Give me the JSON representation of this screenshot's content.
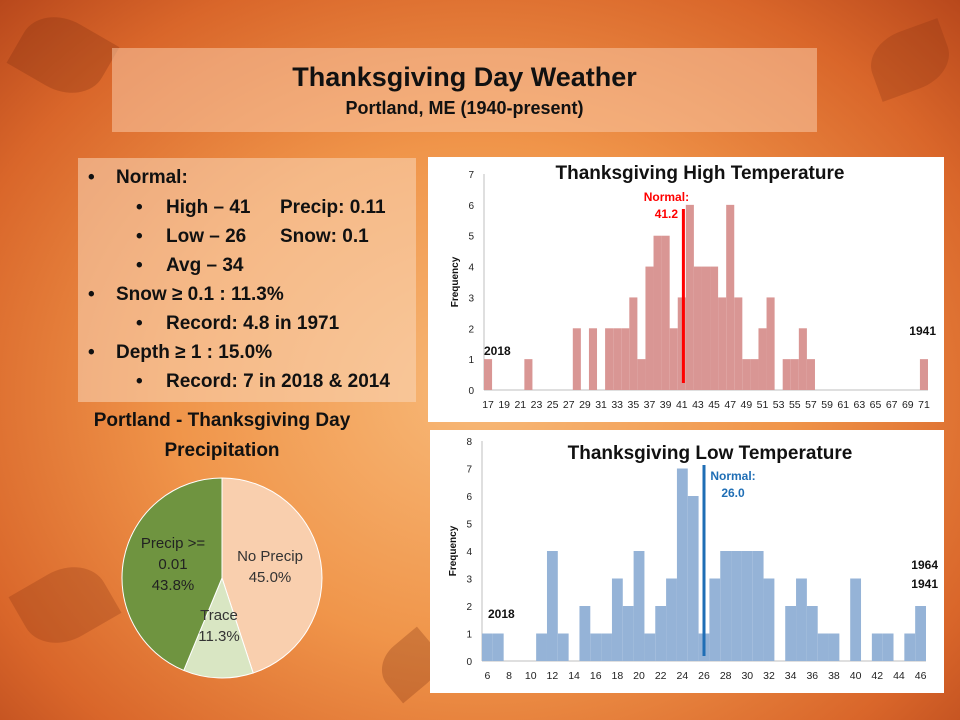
{
  "slide": {
    "title": "Thanksgiving Day Weather",
    "subtitle": "Portland, ME (1940-present)"
  },
  "normals": {
    "heading": "Normal:",
    "high": "High – 41",
    "precip": "Precip: 0.11",
    "low": "Low – 26",
    "snow": "Snow: 0.1",
    "avg": "Avg – 34",
    "snow_freq": "Snow ≥ 0.1 : 11.3%",
    "snow_record": "Record: 4.8 in 1971",
    "depth_freq": "Depth ≥ 1 : 15.0%",
    "depth_record": "Record: 7 in 2018 & 2014"
  },
  "chart_data": [
    {
      "type": "pie",
      "title": "Portland - Thanksgiving Day Precipitation",
      "labels": [
        "No Precip",
        "Trace",
        "Precip >= 0.01"
      ],
      "values": [
        45.0,
        11.3,
        43.8
      ],
      "value_labels": [
        "45.0%",
        "11.3%",
        "43.8%"
      ],
      "colors": [
        "#f9cfae",
        "#d9e6c3",
        "#6f9440"
      ]
    },
    {
      "type": "bar",
      "title": "Thanksgiving High Temperature",
      "ylabel": "Frequency",
      "ylim": [
        0,
        7
      ],
      "yticks": [
        0,
        1,
        2,
        3,
        4,
        5,
        6,
        7
      ],
      "x": [
        17,
        18,
        19,
        20,
        21,
        22,
        23,
        24,
        25,
        26,
        27,
        28,
        29,
        30,
        31,
        32,
        33,
        34,
        35,
        36,
        37,
        38,
        39,
        40,
        41,
        42,
        43,
        44,
        45,
        46,
        47,
        48,
        49,
        50,
        51,
        52,
        53,
        54,
        55,
        56,
        57,
        58,
        59,
        60,
        61,
        62,
        63,
        64,
        65,
        66,
        67,
        68,
        69,
        70,
        71
      ],
      "values": [
        1,
        0,
        0,
        0,
        0,
        1,
        0,
        0,
        0,
        0,
        0,
        2,
        0,
        2,
        0,
        2,
        2,
        2,
        3,
        1,
        4,
        5,
        5,
        2,
        3,
        6,
        4,
        4,
        4,
        3,
        6,
        3,
        1,
        1,
        2,
        3,
        0,
        1,
        1,
        2,
        1,
        0,
        0,
        0,
        0,
        0,
        0,
        0,
        0,
        0,
        0,
        0,
        0,
        0,
        1
      ],
      "xtick_labels": [
        "17",
        "19",
        "21",
        "23",
        "25",
        "27",
        "29",
        "31",
        "33",
        "35",
        "37",
        "39",
        "41",
        "43",
        "45",
        "47",
        "49",
        "51",
        "53",
        "55",
        "57",
        "59",
        "61",
        "63",
        "65",
        "67",
        "69",
        "71"
      ],
      "color": "#d99694",
      "normal_line": {
        "x": 41.2,
        "label": "Normal:",
        "value_label": "41.2",
        "color": "#ff0000"
      },
      "annotations": [
        {
          "text": "2018",
          "x": 17
        },
        {
          "text": "1941",
          "x": 71
        }
      ]
    },
    {
      "type": "bar",
      "title": "Thanksgiving Low Temperature",
      "ylabel": "Frequency",
      "ylim": [
        0,
        8
      ],
      "yticks": [
        0,
        1,
        2,
        3,
        4,
        5,
        6,
        7,
        8
      ],
      "x": [
        6,
        7,
        8,
        9,
        10,
        11,
        12,
        13,
        14,
        15,
        16,
        17,
        18,
        19,
        20,
        21,
        22,
        23,
        24,
        25,
        26,
        27,
        28,
        29,
        30,
        31,
        32,
        33,
        34,
        35,
        36,
        37,
        38,
        39,
        40,
        41,
        42,
        43,
        44,
        45,
        46
      ],
      "values": [
        1,
        1,
        0,
        0,
        0,
        1,
        4,
        1,
        0,
        2,
        1,
        1,
        3,
        2,
        4,
        1,
        2,
        3,
        7,
        6,
        1,
        3,
        4,
        4,
        4,
        4,
        3,
        0,
        2,
        3,
        2,
        1,
        1,
        0,
        3,
        0,
        1,
        1,
        0,
        1,
        2
      ],
      "xtick_labels": [
        "6",
        "8",
        "10",
        "12",
        "14",
        "16",
        "18",
        "20",
        "22",
        "24",
        "26",
        "28",
        "30",
        "32",
        "34",
        "36",
        "38",
        "40",
        "42",
        "44",
        "46"
      ],
      "color": "#95b3d7",
      "normal_line": {
        "x": 26.0,
        "label": "Normal:",
        "value_label": "26.0",
        "color": "#1f6eb5"
      },
      "annotations": [
        {
          "text": "2018",
          "x": 6
        },
        {
          "text": "1964",
          "x": 46
        },
        {
          "text": "1941",
          "x": 46
        }
      ]
    }
  ]
}
